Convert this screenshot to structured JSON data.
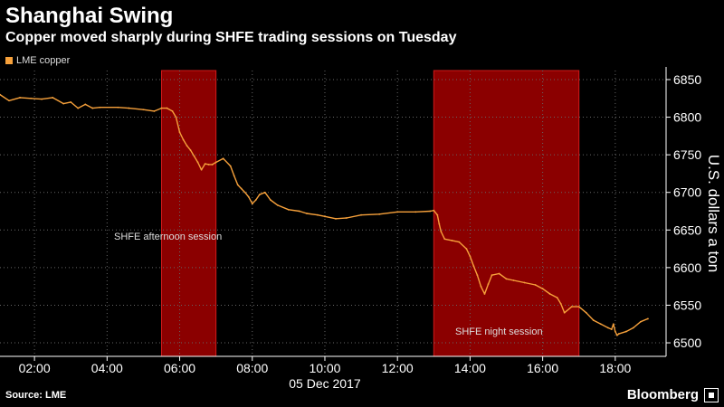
{
  "header": {
    "title": "Shanghai Swing",
    "subtitle": "Copper moved sharply during SHFE trading sessions on Tuesday"
  },
  "footer": {
    "source": "Source: LME",
    "brand": "Bloomberg"
  },
  "colors": {
    "series": "#f7a13b",
    "session_fill": "#8b0000",
    "session_border": "#d11a1a",
    "grid": "#666666"
  },
  "chart_data": {
    "type": "line",
    "title": "Shanghai Swing",
    "subtitle": "Copper moved sharply during SHFE trading sessions on Tuesday",
    "xlabel": "05 Dec 2017",
    "ylabel": "U.S. dollars a ton",
    "y_axis_side": "right",
    "legend": {
      "position": "top-left",
      "entries": [
        "LME copper"
      ]
    },
    "grid": true,
    "xlim": [
      1.05,
      19.4
    ],
    "ylim": [
      6482,
      6862
    ],
    "x_ticks": [
      2,
      4,
      6,
      8,
      10,
      12,
      14,
      16,
      18
    ],
    "x_tick_labels": [
      "02:00",
      "04:00",
      "06:00",
      "08:00",
      "10:00",
      "12:00",
      "14:00",
      "16:00",
      "18:00"
    ],
    "y_ticks": [
      6500,
      6550,
      6600,
      6650,
      6700,
      6750,
      6800,
      6850
    ],
    "y_tick_labels": [
      "6500",
      "6550",
      "6600",
      "6650",
      "6700",
      "6750",
      "6800",
      "6850"
    ],
    "shaded_regions": [
      {
        "label": "SHFE afternoon session",
        "x_start": 5.5,
        "x_end": 7.0
      },
      {
        "label": "SHFE night session",
        "x_start": 13.0,
        "x_end": 17.0
      }
    ],
    "series": [
      {
        "name": "LME copper",
        "x": [
          1.05,
          1.3,
          1.6,
          1.9,
          2.2,
          2.5,
          2.8,
          3.0,
          3.2,
          3.4,
          3.6,
          3.8,
          4.3,
          4.6,
          5.0,
          5.3,
          5.5,
          5.65,
          5.8,
          5.9,
          6.0,
          6.1,
          6.2,
          6.3,
          6.4,
          6.5,
          6.6,
          6.7,
          6.8,
          6.9,
          7.0,
          7.2,
          7.4,
          7.5,
          7.6,
          7.7,
          7.8,
          7.9,
          8.0,
          8.1,
          8.2,
          8.35,
          8.5,
          8.7,
          9.0,
          9.3,
          9.5,
          9.8,
          10.0,
          10.3,
          10.6,
          11.0,
          11.5,
          12.0,
          12.5,
          12.9,
          13.0,
          13.1,
          13.15,
          13.2,
          13.3,
          13.5,
          13.7,
          13.9,
          14.0,
          14.1,
          14.2,
          14.3,
          14.4,
          14.5,
          14.6,
          14.8,
          15.0,
          15.2,
          15.5,
          15.8,
          16.0,
          16.2,
          16.4,
          16.5,
          16.6,
          16.8,
          17.0,
          17.2,
          17.4,
          17.6,
          17.8,
          17.9,
          17.95,
          18.0,
          18.05,
          18.1,
          18.3,
          18.5,
          18.7,
          18.9
        ],
        "values": [
          6830,
          6822,
          6826,
          6825,
          6824,
          6826,
          6818,
          6820,
          6812,
          6817,
          6812,
          6813,
          6813,
          6812,
          6810,
          6808,
          6812,
          6812,
          6808,
          6800,
          6780,
          6770,
          6762,
          6756,
          6748,
          6740,
          6730,
          6738,
          6737,
          6737,
          6740,
          6745,
          6735,
          6722,
          6710,
          6705,
          6700,
          6694,
          6685,
          6690,
          6697,
          6700,
          6690,
          6683,
          6677,
          6675,
          6672,
          6670,
          6668,
          6665,
          6666,
          6670,
          6671,
          6674,
          6674,
          6675,
          6676,
          6670,
          6658,
          6648,
          6638,
          6636,
          6634,
          6625,
          6615,
          6602,
          6590,
          6575,
          6565,
          6578,
          6590,
          6592,
          6585,
          6583,
          6580,
          6577,
          6572,
          6565,
          6560,
          6552,
          6540,
          6548,
          6548,
          6540,
          6530,
          6525,
          6520,
          6518,
          6525,
          6515,
          6510,
          6512,
          6515,
          6520,
          6528,
          6532
        ]
      }
    ]
  }
}
